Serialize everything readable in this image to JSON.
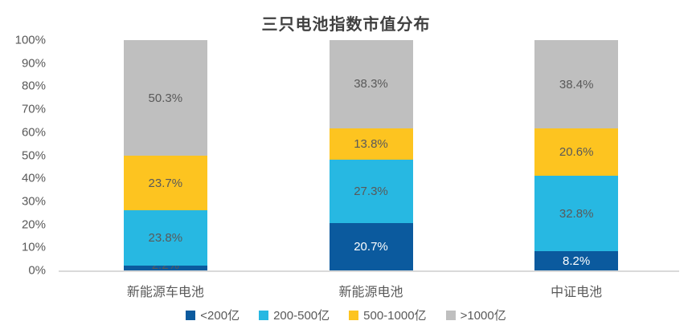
{
  "chart_data": {
    "type": "bar",
    "variant": "100-percent-stacked-column",
    "title": "三只电池指数市值分布",
    "categories": [
      "新能源车电池",
      "新能源电池",
      "中证电池"
    ],
    "series": [
      {
        "name": "<200亿",
        "color": "#0B5A9E",
        "label_color": "#FFFFFF",
        "values": [
          2.2,
          20.7,
          8.2
        ]
      },
      {
        "name": "200-500亿",
        "color": "#27B8E2",
        "label_color": "#595959",
        "values": [
          23.8,
          27.3,
          32.8
        ]
      },
      {
        "name": "500-1000亿",
        "color": "#FDC420",
        "label_color": "#595959",
        "values": [
          23.7,
          13.8,
          20.6
        ]
      },
      {
        "name": ">1000亿",
        "color": "#BFBFBF",
        "label_color": "#595959",
        "values": [
          50.3,
          38.3,
          38.4
        ]
      }
    ],
    "data_labels": true,
    "data_label_suffix": "%",
    "y_tick_labels": [
      "100%",
      "90%",
      "80%",
      "70%",
      "60%",
      "50%",
      "40%",
      "30%",
      "20%",
      "10%",
      "0%"
    ],
    "ylim": [
      0,
      100
    ],
    "grid": false,
    "legend_position": "bottom",
    "colors": {
      "title_text": "#404040",
      "axis_text": "#595959",
      "label_text_dark": "#595959",
      "label_text_light": "#FFFFFF",
      "axis_line": "#D9D9D9",
      "background": "#FFFFFF"
    }
  }
}
